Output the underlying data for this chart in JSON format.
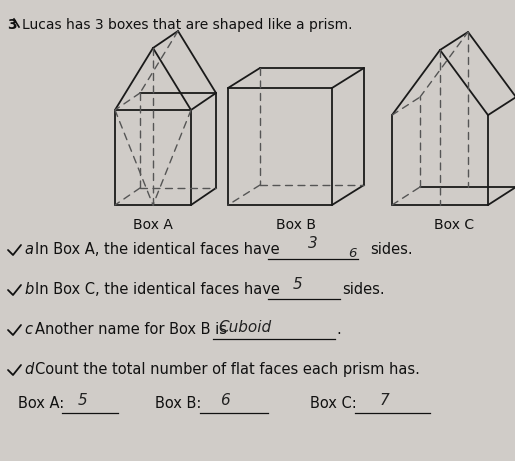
{
  "bg_color": "#d0ccc8",
  "question_number": "3",
  "title": "Lucas has 3 boxes that are shaped like a prism.",
  "box_labels": [
    "Box A",
    "Box B",
    "Box C"
  ],
  "answer_a": "3",
  "answer_a2": "6",
  "answer_b": "5",
  "answer_c": "Cuboid",
  "answer_d_boxa": "5",
  "answer_d_boxb": "6",
  "answer_d_boxc": "7",
  "line_color": "#1a1a1a",
  "dashed_color": "#555555",
  "text_color": "#111111",
  "answer_color": "#222222",
  "fig_width": 5.15,
  "fig_height": 4.61,
  "dpi": 100
}
